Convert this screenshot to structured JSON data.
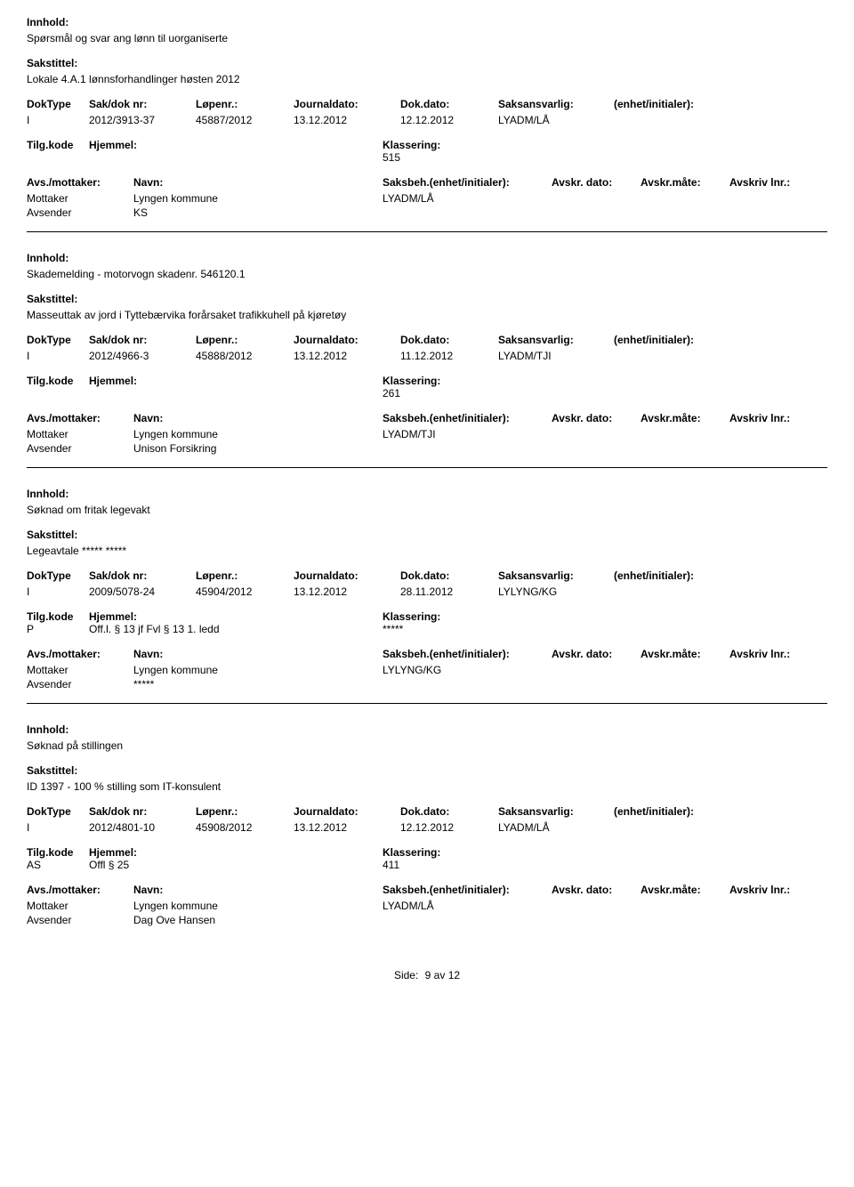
{
  "labels": {
    "innhold": "Innhold:",
    "sakstittel": "Sakstittel:",
    "doktype": "DokType",
    "sakdok": "Sak/dok nr:",
    "lopenr": "Løpenr.:",
    "journaldato": "Journaldato:",
    "dokdato": "Dok.dato:",
    "saksansvarlig": "Saksansvarlig:",
    "enhet": "(enhet/initialer):",
    "tilgkode": "Tilg.kode",
    "hjemmel": "Hjemmel:",
    "klassering": "Klassering:",
    "avsmottaker": "Avs./mottaker:",
    "navn": "Navn:",
    "saksbeh": "Saksbeh.(enhet/initialer):",
    "avskrdato": "Avskr. dato:",
    "avskrmate": "Avskr.måte:",
    "avskrivlnr": "Avskriv lnr.:",
    "mottaker": "Mottaker",
    "avsender": "Avsender",
    "side": "Side:",
    "av": "av"
  },
  "footer": {
    "page": "9",
    "total": "12"
  },
  "records": [
    {
      "innhold": "Spørsmål og svar ang lønn til uorganiserte",
      "sakstittel": "Lokale 4.A.1 lønnsforhandlinger høsten 2012",
      "doktype": "I",
      "sakdok": "2012/3913-37",
      "lopenr": "45887/2012",
      "journaldato": "13.12.2012",
      "dokdato": "12.12.2012",
      "saksansvarlig": "LYADM/LÅ",
      "tilgkode": "",
      "hjemmel": "",
      "klassering": "515",
      "parties": [
        {
          "role": "Mottaker",
          "navn": "Lyngen kommune",
          "saksbeh": "LYADM/LÅ"
        },
        {
          "role": "Avsender",
          "navn": "KS",
          "saksbeh": ""
        }
      ]
    },
    {
      "innhold": "Skademelding - motorvogn skadenr. 546120.1",
      "sakstittel": "Masseuttak av jord i Tyttebærvika forårsaket trafikkuhell på kjøretøy",
      "doktype": "I",
      "sakdok": "2012/4966-3",
      "lopenr": "45888/2012",
      "journaldato": "13.12.2012",
      "dokdato": "11.12.2012",
      "saksansvarlig": "LYADM/TJI",
      "tilgkode": "",
      "hjemmel": "",
      "klassering": "261",
      "parties": [
        {
          "role": "Mottaker",
          "navn": "Lyngen kommune",
          "saksbeh": "LYADM/TJI"
        },
        {
          "role": "Avsender",
          "navn": "Unison Forsikring",
          "saksbeh": ""
        }
      ]
    },
    {
      "innhold": "Søknad om fritak legevakt",
      "sakstittel": "Legeavtale ***** *****",
      "doktype": "I",
      "sakdok": "2009/5078-24",
      "lopenr": "45904/2012",
      "journaldato": "13.12.2012",
      "dokdato": "28.11.2012",
      "saksansvarlig": "LYLYNG/KG",
      "tilgkode": "P",
      "hjemmel": "Off.l. § 13 jf Fvl § 13 1. ledd",
      "klassering": "*****",
      "parties": [
        {
          "role": "Mottaker",
          "navn": "Lyngen kommune",
          "saksbeh": "LYLYNG/KG"
        },
        {
          "role": "Avsender",
          "navn": "*****",
          "saksbeh": ""
        }
      ]
    },
    {
      "innhold": "Søknad på stillingen",
      "sakstittel": "ID 1397 - 100 % stilling som IT-konsulent",
      "doktype": "I",
      "sakdok": "2012/4801-10",
      "lopenr": "45908/2012",
      "journaldato": "13.12.2012",
      "dokdato": "12.12.2012",
      "saksansvarlig": "LYADM/LÅ",
      "tilgkode": "AS",
      "hjemmel": "Offl § 25",
      "klassering": "411",
      "parties": [
        {
          "role": "Mottaker",
          "navn": "Lyngen kommune",
          "saksbeh": "LYADM/LÅ"
        },
        {
          "role": "Avsender",
          "navn": "Dag Ove Hansen",
          "saksbeh": ""
        }
      ]
    }
  ]
}
